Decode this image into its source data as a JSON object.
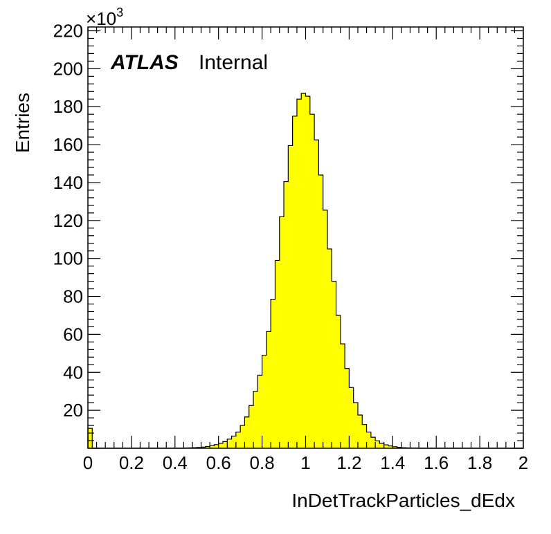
{
  "chart_data": {
    "type": "bar",
    "histogram": true,
    "xlabel": "InDetTrackParticles_dEdx",
    "ylabel": "Entries",
    "multiplier": "10",
    "multiplier_exp": "3",
    "multiplier_prefix": "×",
    "atlas_label": "ATLAS",
    "atlas_status": "Internal",
    "xlim": [
      0,
      2
    ],
    "ylim": [
      0,
      222
    ],
    "x_ticks": [
      "0",
      "0.2",
      "0.4",
      "0.6",
      "0.8",
      "1",
      "1.2",
      "1.4",
      "1.6",
      "1.8",
      "2"
    ],
    "y_ticks": [
      "20",
      "40",
      "60",
      "80",
      "100",
      "120",
      "140",
      "160",
      "180",
      "200",
      "220"
    ],
    "bin_width": 0.02,
    "bin_edges_start": 0,
    "values": [
      10.5,
      0,
      0,
      0,
      0,
      0,
      0,
      0,
      0,
      0,
      0,
      0,
      0,
      0,
      0,
      0,
      0,
      0,
      0,
      0,
      0,
      0,
      0.1,
      0.2,
      0.3,
      0.4,
      0.6,
      0.9,
      1.3,
      1.9,
      2.6,
      3.5,
      4.8,
      6.4,
      8.5,
      12.0,
      16.5,
      22.5,
      30.0,
      38.5,
      49.0,
      61.5,
      78.5,
      99.0,
      122.0,
      140.5,
      159.5,
      175.0,
      184.0,
      187.0,
      185.5,
      176.0,
      162.5,
      144.0,
      125.5,
      105.0,
      88.0,
      70.0,
      55.0,
      42.0,
      32.0,
      24.0,
      17.5,
      12.5,
      8.5,
      5.8,
      3.9,
      2.6,
      1.8,
      1.2,
      0.8,
      0.5,
      0.3,
      0.2,
      0.1,
      0.1,
      0,
      0,
      0,
      0,
      0,
      0,
      0,
      0,
      0,
      0,
      0,
      0,
      0,
      0,
      0,
      0,
      0,
      0,
      0,
      0,
      0,
      0,
      0,
      0
    ],
    "fill_color": "#ffff00",
    "line_color": "#000000"
  }
}
